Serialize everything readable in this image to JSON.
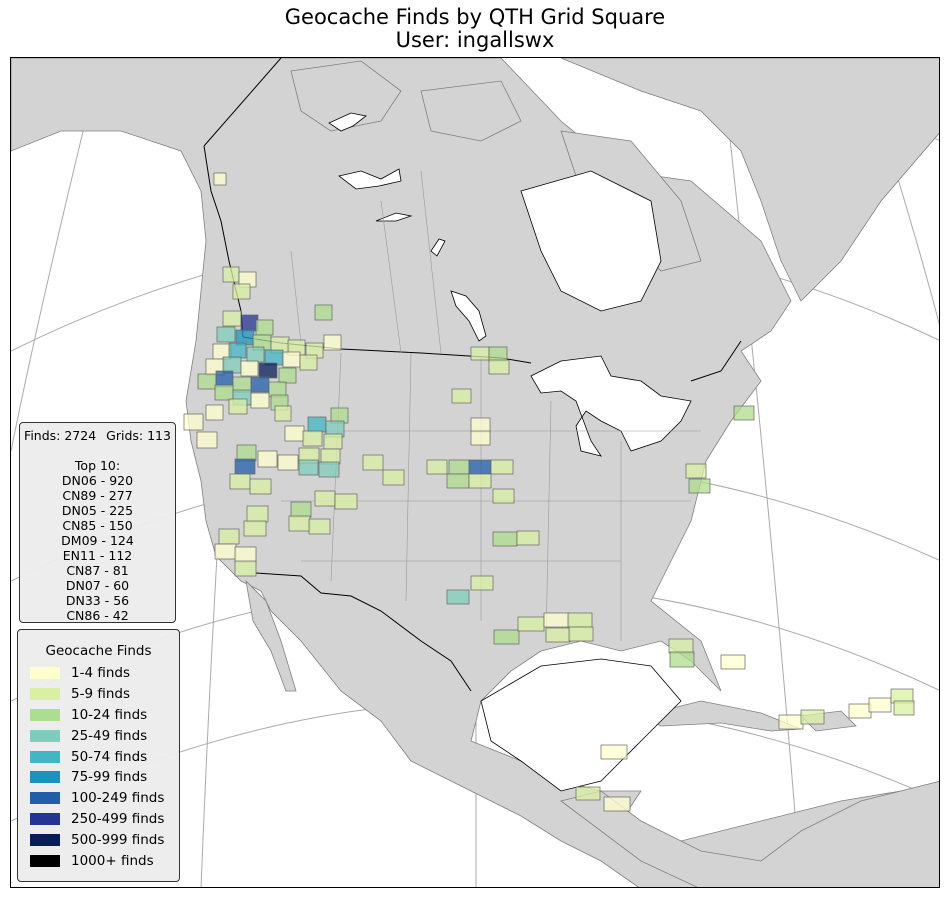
{
  "title": {
    "line1": "Geocache Finds by QTH Grid Square",
    "line2": "User: ingallswx"
  },
  "stats": {
    "finds": "Finds: 2724",
    "grids": "Grids: 113",
    "top10_title": "Top 10:",
    "top10": [
      "DN06 - 920",
      "CN89 - 277",
      "DN05 - 225",
      "CN85 - 150",
      "DM09 - 124",
      "EN11 - 112",
      "CN87 - 81",
      "DN07 - 60",
      "DN33 - 56",
      "CN86 - 42"
    ]
  },
  "legend": {
    "title": "Geocache Finds",
    "items": [
      {
        "label": "1-4 finds",
        "color": "#ffffcc"
      },
      {
        "label": "5-9 finds",
        "color": "#d9f0a3"
      },
      {
        "label": "10-24 finds",
        "color": "#addd8e"
      },
      {
        "label": "25-49 finds",
        "color": "#7fcdbb"
      },
      {
        "label": "50-74 finds",
        "color": "#41b6c4"
      },
      {
        "label": "75-99 finds",
        "color": "#1d91c0"
      },
      {
        "label": "100-249 finds",
        "color": "#225ea8"
      },
      {
        "label": "250-499 finds",
        "color": "#253494"
      },
      {
        "label": "500-999 finds",
        "color": "#081d58"
      },
      {
        "label": "1000+ finds",
        "color": "#000000"
      }
    ]
  },
  "map": {
    "land_color": "#d3d3d3",
    "water_color": "#ffffff",
    "border_color": "#808080",
    "graticule_color": "#aaaaaa"
  }
}
